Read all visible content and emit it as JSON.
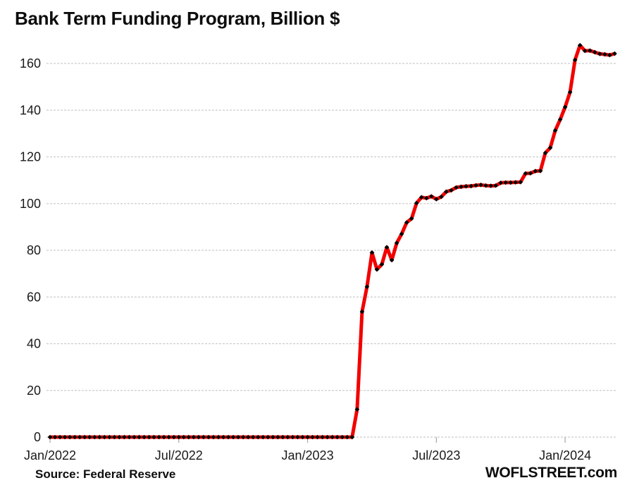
{
  "title": "Bank Term Funding Program, Billion $",
  "source": "Source: Federal Reserve",
  "branding": "WOFLSTREET.com",
  "colors": {
    "line": "#f20000",
    "marker": "#000000",
    "grid": "#cccccc",
    "tick": "#a6a6a6",
    "axis_text": "#1a1a1a",
    "title_text": "#0d0d0d"
  },
  "chart_data": {
    "type": "line",
    "title": "Bank Term Funding Program, Billion $",
    "xlabel": "",
    "ylabel": "Billion $",
    "legend": "none",
    "grid": "horizontal dashed lines at each y tick",
    "x_axis": {
      "tick_labels": [
        "Jan/2022",
        "Jul/2022",
        "Jan/2023",
        "Jul/2023",
        "Jan/2024"
      ],
      "tick_week_indexes": [
        0,
        26,
        52,
        78,
        104
      ]
    },
    "y_axis": {
      "tick_labels": [
        "0",
        "20",
        "40",
        "60",
        "80",
        "100",
        "120",
        "140",
        "160"
      ],
      "ticks": [
        0,
        20,
        40,
        60,
        80,
        100,
        120,
        140,
        160
      ],
      "range": [
        0,
        172
      ]
    },
    "series": [
      {
        "name": "Bank Term Funding Program balance, billion $",
        "frequency": "weekly",
        "start_label": "Jan/2022",
        "end_label": "Mar/2024",
        "marker": "black-diamond",
        "values": [
          0,
          0,
          0,
          0,
          0,
          0,
          0,
          0,
          0,
          0,
          0,
          0,
          0,
          0,
          0,
          0,
          0,
          0,
          0,
          0,
          0,
          0,
          0,
          0,
          0,
          0,
          0,
          0,
          0,
          0,
          0,
          0,
          0,
          0,
          0,
          0,
          0,
          0,
          0,
          0,
          0,
          0,
          0,
          0,
          0,
          0,
          0,
          0,
          0,
          0,
          0,
          0,
          0,
          0,
          0,
          0,
          0,
          0,
          0,
          0,
          0,
          0,
          11.9,
          53.7,
          64.4,
          79.0,
          71.8,
          74.0,
          81.3,
          75.8,
          83.1,
          87.0,
          91.9,
          93.6,
          100.2,
          102.7,
          102.3,
          103.1,
          101.9,
          102.9,
          105.1,
          105.7,
          106.9,
          107.2,
          107.4,
          107.5,
          107.8,
          108.0,
          107.7,
          107.6,
          107.7,
          108.9,
          109.0,
          109.0,
          109.1,
          109.2,
          112.9,
          113.0,
          113.9,
          114.0,
          121.7,
          123.9,
          131.3,
          136.0,
          141.3,
          147.7,
          161.5,
          167.8,
          165.4,
          165.5,
          164.8,
          164.1,
          163.9,
          163.6,
          164.2
        ]
      }
    ]
  }
}
